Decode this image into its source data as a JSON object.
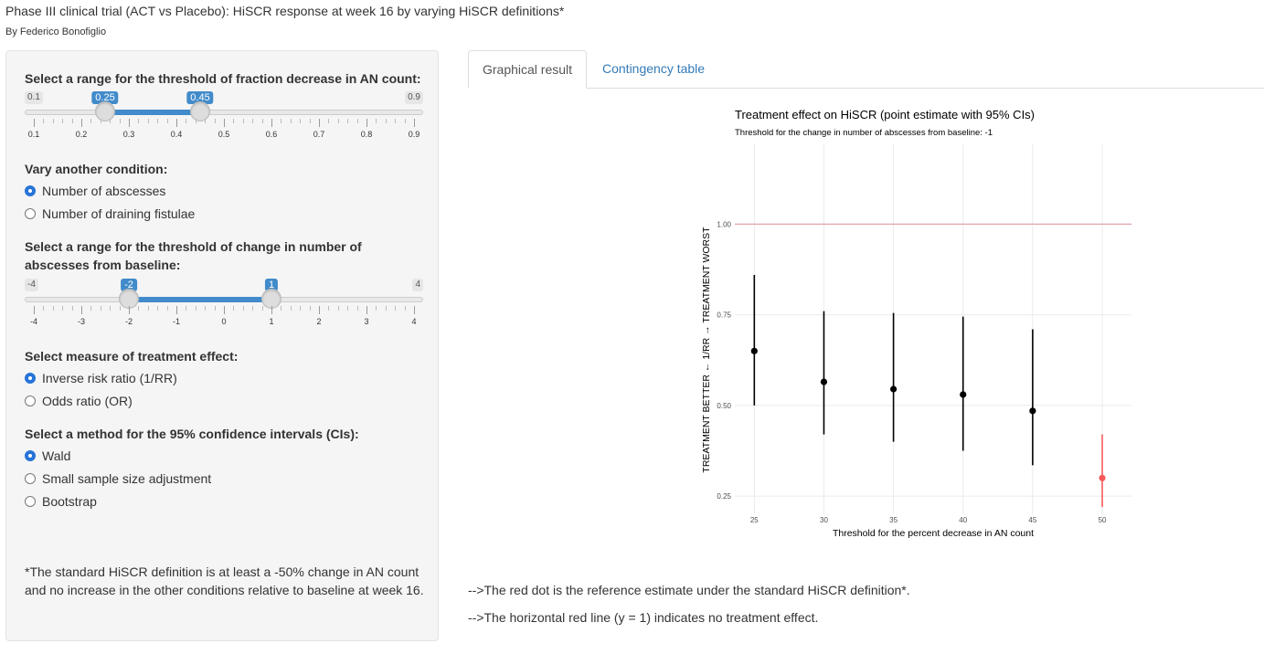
{
  "app": {
    "title": "Phase III clinical trial (ACT vs Placebo): HiSCR response at week 16 by varying HiSCR definitions*",
    "author": "By Federico Bonofiglio"
  },
  "sidebar": {
    "slider1": {
      "label": "Select a range for the threshold of fraction decrease in AN count:",
      "min": 0.1,
      "max": 0.9,
      "from": 0.25,
      "to": 0.45,
      "min_label": "0.1",
      "max_label": "0.9",
      "from_label": "0.25",
      "to_label": "0.45",
      "tick_labels": [
        "0.1",
        "0.2",
        "0.3",
        "0.4",
        "0.5",
        "0.6",
        "0.7",
        "0.8",
        "0.9"
      ]
    },
    "condition": {
      "label": "Vary another condition:",
      "options": [
        "Number of abscesses",
        "Number of draining fistulae"
      ],
      "selected": 0
    },
    "slider2": {
      "label": "Select a range for the threshold of change in number of abscesses from baseline:",
      "min": -4,
      "max": 4,
      "from": -2,
      "to": 1,
      "min_label": "-4",
      "max_label": "4",
      "from_label": "-2",
      "to_label": "1",
      "tick_labels": [
        "-4",
        "-3",
        "-2",
        "-1",
        "0",
        "1",
        "2",
        "3",
        "4"
      ]
    },
    "measure": {
      "label": "Select measure of treatment effect:",
      "options": [
        "Inverse risk ratio (1/RR)",
        "Odds ratio (OR)"
      ],
      "selected": 0
    },
    "ci_method": {
      "label": "Select a method for the 95% confidence intervals (CIs):",
      "options": [
        "Wald",
        "Small sample size adjustment",
        "Bootstrap"
      ],
      "selected": 0
    },
    "footnote": "*The standard HiSCR definition is at least a -50% change in AN count and no increase in the other conditions relative to baseline at week 16."
  },
  "tabs": [
    {
      "label": "Graphical result",
      "active": true
    },
    {
      "label": "Contingency table",
      "active": false
    }
  ],
  "chart_data": {
    "type": "scatter",
    "title": "Treatment effect on HiSCR (point estimate with 95% CIs)",
    "subtitle": "Threshold for the change in number of abscesses from baseline: -1",
    "xlabel": "Threshold for the percent decrease in AN count",
    "ylabel": "TREATMENT BETTER ← 1/RR → TREATMENT WORST",
    "x": [
      25,
      30,
      35,
      40,
      45,
      50
    ],
    "y": [
      0.65,
      0.565,
      0.545,
      0.53,
      0.485,
      0.3
    ],
    "lower": [
      0.5,
      0.42,
      0.4,
      0.375,
      0.335,
      0.22
    ],
    "upper": [
      0.86,
      0.76,
      0.755,
      0.745,
      0.71,
      0.42
    ],
    "point_colors": [
      "#000000",
      "#000000",
      "#000000",
      "#000000",
      "#000000",
      "#f8595c"
    ],
    "reference_line": 1.0,
    "reference_color": "#e0a3ab",
    "xticks": [
      25,
      30,
      35,
      40,
      45,
      50
    ],
    "yticks": [
      0.25,
      0.5,
      0.75,
      1.0
    ],
    "ytick_labels": [
      "0.25",
      "0.50",
      "0.75",
      "1.00"
    ],
    "ylim": [
      0.2,
      1.22
    ],
    "xlim": [
      23.6,
      52.1
    ],
    "grid": true
  },
  "notes": [
    "-->The red dot is the reference estimate under the standard HiSCR definition*.",
    "-->The horizontal red line (y = 1) indicates no treatment effect."
  ]
}
